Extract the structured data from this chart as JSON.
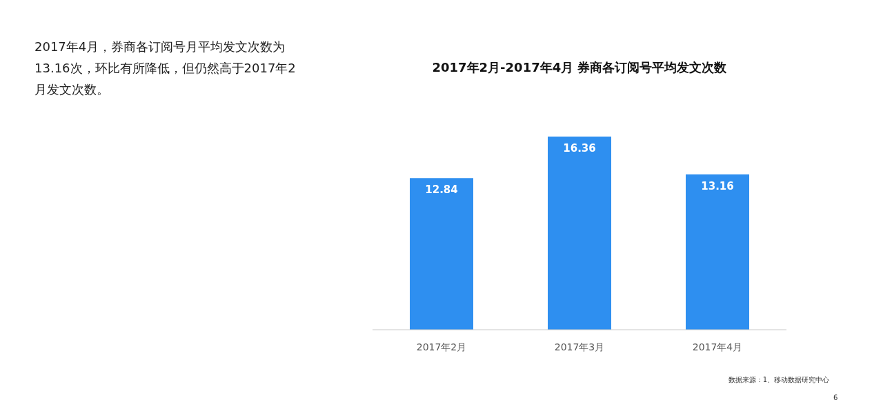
{
  "chart_data": {
    "type": "bar",
    "title": "2017年2月-2017年4月 券商各订阅号平均发文次数",
    "categories": [
      "2017年2月",
      "2017年3月",
      "2017年4月"
    ],
    "values": [
      12.84,
      16.36,
      13.16
    ],
    "color": "#2e8ff0",
    "data_labels": true,
    "annotations": [
      "2017年4月，券商各订阅号月平均发文次数为13.16次，环比有所降低，但仍然高于2017年2月发文次数。",
      "数据来源：1、移动数据研究中心",
      "6"
    ]
  }
}
